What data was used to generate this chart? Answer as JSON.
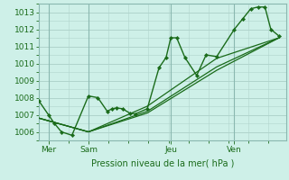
{
  "title": "Pression niveau de la mer( hPa )",
  "bg_color": "#cef0e8",
  "grid_color": "#b0d4cc",
  "line_color": "#1a6b1a",
  "vline_color": "#8ab8b0",
  "spine_color": "#8ab8b0",
  "xlim": [
    0,
    10.5
  ],
  "ylim": [
    1005.5,
    1013.5
  ],
  "yticks": [
    1006,
    1007,
    1008,
    1009,
    1010,
    1011,
    1012,
    1013
  ],
  "xtick_labels": [
    "Mer",
    "Sam",
    "Jeu",
    "Ven"
  ],
  "xtick_positions": [
    0.4,
    2.1,
    5.6,
    8.3
  ],
  "vlines": [
    0.4,
    2.1,
    5.6,
    8.3
  ],
  "series": [
    {
      "x": [
        0.0,
        0.4,
        0.65,
        0.95,
        1.4,
        2.1,
        2.5,
        2.9,
        3.1,
        3.3,
        3.55,
        3.85,
        4.1,
        4.6,
        5.1,
        5.4,
        5.6,
        5.85,
        6.2,
        6.7,
        7.1,
        7.55,
        8.3,
        8.65,
        9.0,
        9.3,
        9.6,
        9.85,
        10.2
      ],
      "y": [
        1007.8,
        1007.0,
        1006.5,
        1006.0,
        1005.8,
        1008.1,
        1008.0,
        1007.2,
        1007.35,
        1007.4,
        1007.35,
        1007.1,
        1007.05,
        1007.35,
        1009.75,
        1010.35,
        1011.5,
        1011.5,
        1010.35,
        1009.3,
        1010.5,
        1010.4,
        1012.0,
        1012.6,
        1013.2,
        1013.3,
        1013.3,
        1012.0,
        1011.6
      ],
      "marker": true,
      "lw": 1.0
    },
    {
      "x": [
        0.0,
        2.1,
        4.6,
        7.55,
        10.2
      ],
      "y": [
        1006.8,
        1006.0,
        1007.1,
        1009.6,
        1011.5
      ],
      "marker": false,
      "lw": 0.9
    },
    {
      "x": [
        0.0,
        2.1,
        4.6,
        7.55,
        10.2
      ],
      "y": [
        1006.8,
        1006.0,
        1007.2,
        1009.8,
        1011.5
      ],
      "marker": false,
      "lw": 0.9
    },
    {
      "x": [
        0.0,
        2.1,
        4.6,
        7.55,
        10.2
      ],
      "y": [
        1006.8,
        1006.0,
        1007.5,
        1010.3,
        1011.5
      ],
      "marker": false,
      "lw": 0.9
    }
  ]
}
